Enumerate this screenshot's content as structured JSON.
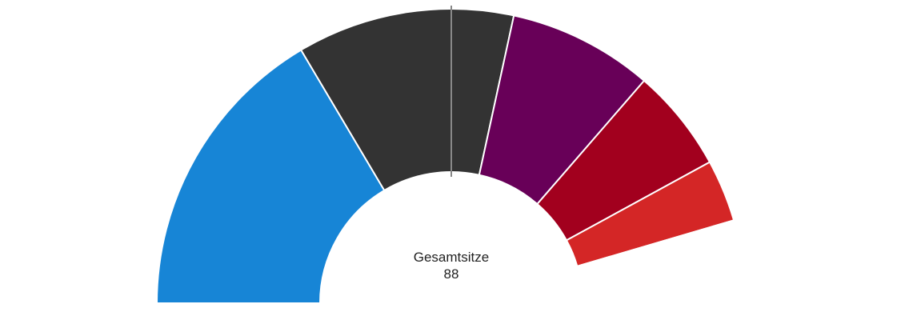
{
  "chart_data": {
    "type": "pie",
    "variant": "semicircle-donut",
    "total_label": "Gesamtsitze",
    "total_value": "88",
    "majority_marker": true,
    "slices": [
      {
        "value": 29,
        "color": "#1785d6"
      },
      {
        "value": 21,
        "color": "#333333"
      },
      {
        "value": 14,
        "color": "#680058"
      },
      {
        "value": 10,
        "color": "#a2001e"
      },
      {
        "value": 6,
        "color": "#d42626"
      },
      {
        "value": 8,
        "color": "#ffffff"
      }
    ]
  }
}
